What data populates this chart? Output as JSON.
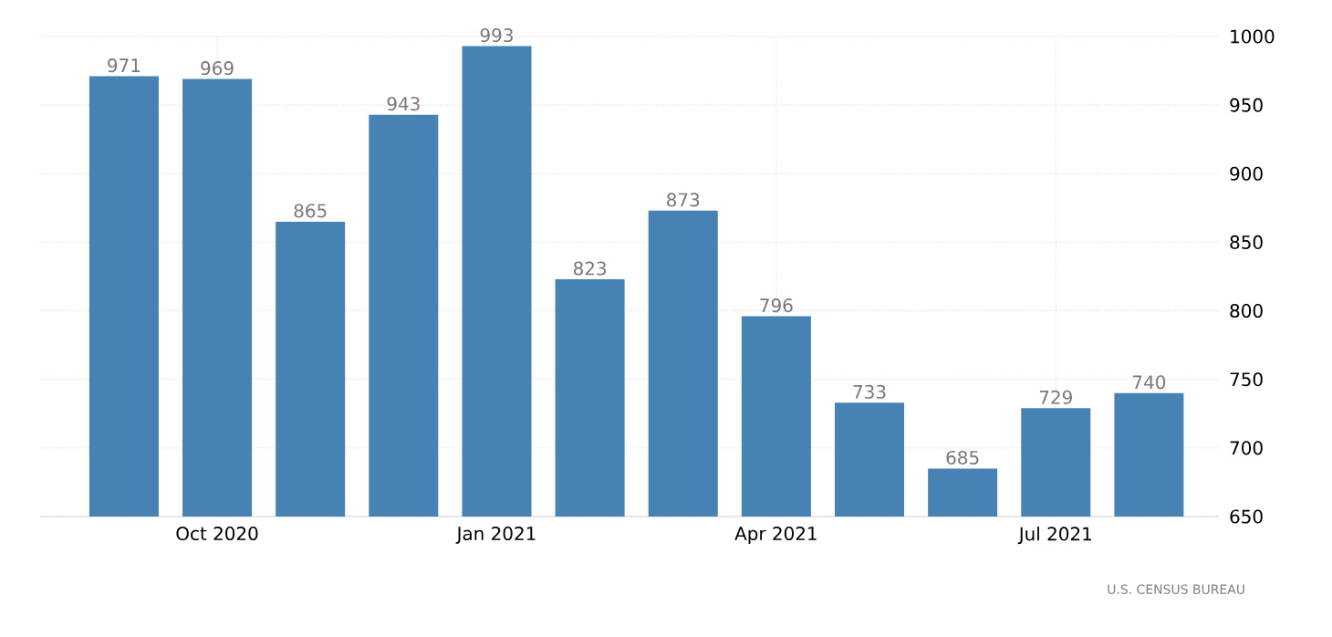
{
  "chart_data": {
    "type": "bar",
    "categories": [
      null,
      "Oct 2020",
      null,
      null,
      "Jan 2021",
      null,
      null,
      "Apr 2021",
      null,
      null,
      "Jul 2021",
      null
    ],
    "values": [
      971,
      969,
      865,
      943,
      993,
      823,
      873,
      796,
      733,
      685,
      729,
      740
    ],
    "color": "#4682b4",
    "ylim": [
      650,
      1000
    ],
    "yticks": [
      650,
      700,
      750,
      800,
      850,
      900,
      950,
      1000
    ],
    "grid": true,
    "data_labels": true,
    "annotations": [
      "U.S. CENSUS BUREAU"
    ]
  }
}
